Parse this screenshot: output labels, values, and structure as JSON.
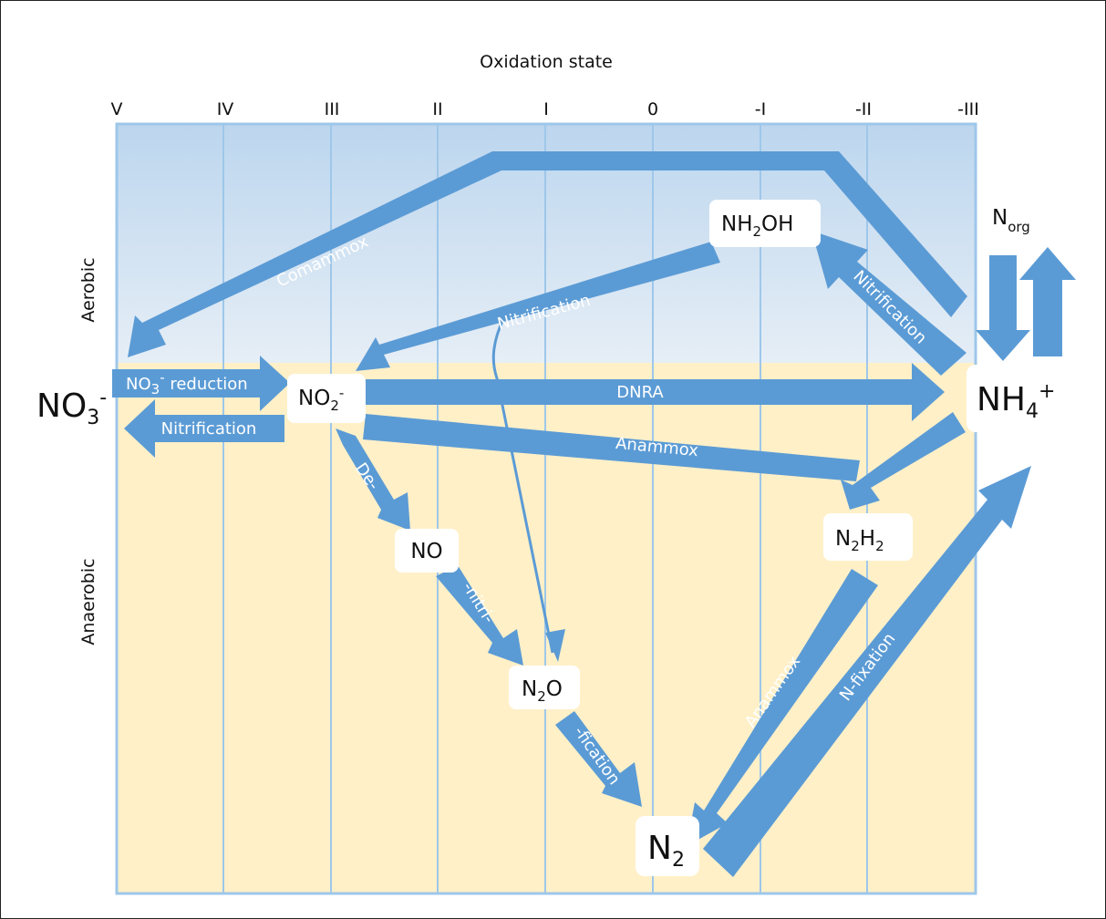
{
  "title": "Oxidation state",
  "oxidation_states": [
    "V",
    "IV",
    "III",
    "II",
    "I",
    "0",
    "-I",
    "-II",
    "-III"
  ],
  "zones": {
    "aerobic": "Aerobic",
    "anaerobic": "Anaerobic"
  },
  "colors": {
    "arrow": "#5b9bd5",
    "aerobic_top": "#bcd6ee",
    "aerobic_bottom": "#e6eef6",
    "anaerobic": "#fff0c8",
    "grid": "#9ec7ea"
  },
  "species": {
    "no3": {
      "base": "NO",
      "sub": "3",
      "sup": "-"
    },
    "no2": {
      "base": "NO",
      "sub": "2",
      "sup": "-"
    },
    "nh2oh": {
      "pre": "NH",
      "sub": "2",
      "post": "OH"
    },
    "nh4": {
      "base": "NH",
      "sub": "4",
      "sup": "+"
    },
    "norg": {
      "base": "N",
      "sub": "org"
    },
    "no": {
      "text": "NO"
    },
    "n2o": {
      "pre": "N",
      "sub": "2",
      "post": "O"
    },
    "n2h2": {
      "pre": "N",
      "sub": "2",
      "mid": "H",
      "sub2": "2"
    },
    "n2": {
      "base": "N",
      "sub": "2"
    }
  },
  "processes": {
    "comammox": "Comammox",
    "nitrification_nh2oh": "Nitrification",
    "nitrification_nh4": "Nitrification",
    "no3_reduction_prefix": "NO",
    "no3_reduction_sub": "3",
    "no3_reduction_sup": "-",
    "no3_reduction_suffix": " reduction",
    "nitrification_no2": "Nitrification",
    "dnra": "DNRA",
    "anammox_top": "Anammox",
    "de": "De-",
    "nitri": "-nitri-",
    "fication": "-fication",
    "anammox_bottom": "Anammox",
    "n_fixation": "N-fixation"
  }
}
